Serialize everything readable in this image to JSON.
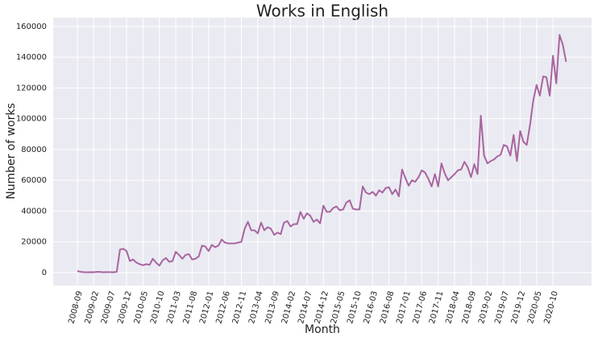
{
  "chart_data": {
    "type": "line",
    "title": "Works in English",
    "x_label": "Month",
    "y_label": "Number of works",
    "categories": [
      "2008-09",
      null,
      null,
      null,
      null,
      "2009-02",
      null,
      null,
      null,
      null,
      "2009-07",
      null,
      null,
      null,
      null,
      "2009-12",
      null,
      null,
      null,
      null,
      "2010-05",
      null,
      null,
      null,
      null,
      "2010-10",
      null,
      null,
      null,
      null,
      "2011-03",
      null,
      null,
      null,
      null,
      "2011-08",
      null,
      null,
      null,
      null,
      "2012-01",
      null,
      null,
      null,
      null,
      "2012-06",
      null,
      null,
      null,
      null,
      "2012-11",
      null,
      null,
      null,
      null,
      "2013-04",
      null,
      null,
      null,
      null,
      "2013-09",
      null,
      null,
      null,
      null,
      "2014-02",
      null,
      null,
      null,
      null,
      "2014-07",
      null,
      null,
      null,
      null,
      "2014-12",
      null,
      null,
      null,
      null,
      "2015-05",
      null,
      null,
      null,
      null,
      "2015-10",
      null,
      null,
      null,
      null,
      "2016-03",
      null,
      null,
      null,
      null,
      "2016-08",
      null,
      null,
      null,
      null,
      "2017-01",
      null,
      null,
      null,
      null,
      "2017-06",
      null,
      null,
      null,
      null,
      "2017-11",
      null,
      null,
      null,
      null,
      "2018-04",
      null,
      null,
      null,
      null,
      "2018-09",
      null,
      null,
      null,
      null,
      "2019-02",
      null,
      null,
      null,
      null,
      "2019-07",
      null,
      null,
      null,
      null,
      "2019-12",
      null,
      null,
      null,
      null,
      "2020-05",
      null,
      null,
      null,
      null,
      "2020-10",
      null,
      null,
      null,
      null
    ],
    "values": [
      1000,
      500,
      300,
      200,
      300,
      200,
      500,
      400,
      200,
      300,
      300,
      200,
      500,
      15000,
      15500,
      14000,
      7500,
      8500,
      6500,
      5500,
      4800,
      5500,
      5000,
      9000,
      6500,
      4500,
      8000,
      9500,
      7000,
      7500,
      13500,
      11500,
      9000,
      11500,
      12000,
      8500,
      9000,
      10500,
      17500,
      17000,
      14000,
      18000,
      16500,
      17500,
      21500,
      19500,
      19000,
      19000,
      19000,
      19500,
      20000,
      28500,
      33000,
      27500,
      27500,
      25500,
      32500,
      27500,
      29500,
      28500,
      24500,
      26000,
      25000,
      32500,
      33500,
      30000,
      31500,
      31500,
      39500,
      35000,
      38500,
      37000,
      33000,
      34500,
      32000,
      43500,
      39500,
      39500,
      42000,
      43000,
      40500,
      41000,
      45500,
      47000,
      41500,
      41000,
      41000,
      56000,
      52000,
      51000,
      52500,
      50000,
      53500,
      52000,
      55000,
      55500,
      51000,
      54000,
      49500,
      67000,
      61500,
      56500,
      60000,
      59000,
      62000,
      66500,
      65000,
      61000,
      56000,
      64000,
      56000,
      71000,
      64500,
      60000,
      62000,
      64000,
      66500,
      67000,
      72000,
      68500,
      62000,
      70500,
      64000,
      102000,
      76000,
      71000,
      72500,
      73500,
      75500,
      76500,
      83000,
      82000,
      76000,
      89500,
      72500,
      92000,
      85000,
      83000,
      96000,
      112000,
      122000,
      115000,
      127500,
      127000,
      115000,
      141000,
      123000,
      154500,
      148000,
      137000
    ],
    "color": "#a8659f",
    "ylim": [
      -8400,
      165700
    ],
    "yticks": [
      0,
      20000,
      40000,
      60000,
      80000,
      100000,
      120000,
      140000,
      160000
    ],
    "grid": true
  }
}
